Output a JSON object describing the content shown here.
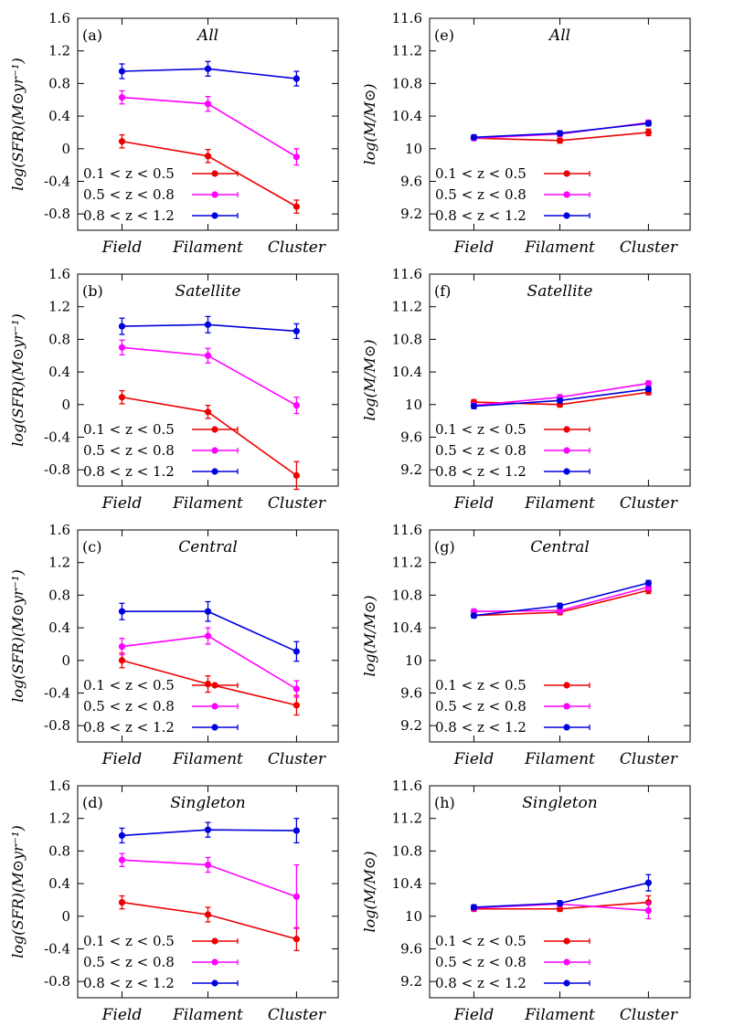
{
  "colors": {
    "z1": "#ee0000",
    "z2": "#ff00ff",
    "z3": "#0000dd",
    "frame": "#000000"
  },
  "legend_position": "bottom-left",
  "chart_data": [
    {
      "type": "line",
      "label": "(a)",
      "title": "All",
      "ylabel": "log(SFR)(M⊙yr⁻¹)",
      "ylim": [
        -1.0,
        1.6
      ],
      "yticks": [
        1.6,
        1.2,
        0.8,
        0.4,
        0,
        -0.4,
        -0.8
      ],
      "categories": [
        "Field",
        "Filament",
        "Cluster"
      ],
      "series": [
        {
          "name": "0.1 < z < 0.5",
          "values": [
            0.09,
            -0.09,
            -0.71
          ],
          "errors": [
            0.08,
            0.08,
            0.08
          ]
        },
        {
          "name": "0.5 < z < 0.8",
          "values": [
            0.63,
            0.55,
            -0.1
          ],
          "errors": [
            0.08,
            0.09,
            0.1
          ]
        },
        {
          "name": "0.8 < z < 1.2",
          "values": [
            0.95,
            0.98,
            0.86
          ],
          "errors": [
            0.09,
            0.09,
            0.09
          ]
        }
      ]
    },
    {
      "type": "line",
      "label": "(e)",
      "title": "All",
      "ylabel": "log(M/M⊙)",
      "ylim": [
        9.0,
        11.6
      ],
      "yticks": [
        11.6,
        11.2,
        10.8,
        10.4,
        10,
        9.6,
        9.2
      ],
      "categories": [
        "Field",
        "Filament",
        "Cluster"
      ],
      "series": [
        {
          "name": "0.1 < z < 0.5",
          "values": [
            10.13,
            10.1,
            10.2
          ],
          "errors": [
            0.03,
            0.03,
            0.04
          ]
        },
        {
          "name": "0.5 < z < 0.8",
          "values": [
            10.13,
            10.18,
            10.32
          ],
          "errors": [
            0.03,
            0.03,
            0.03
          ]
        },
        {
          "name": "0.8 < z < 1.2",
          "values": [
            10.14,
            10.19,
            10.31
          ],
          "errors": [
            0.03,
            0.03,
            0.03
          ]
        }
      ]
    },
    {
      "type": "line",
      "label": "(b)",
      "title": "Satellite",
      "ylabel": "log(SFR)(M⊙yr⁻¹)",
      "ylim": [
        -1.0,
        1.6
      ],
      "yticks": [
        1.6,
        1.2,
        0.8,
        0.4,
        0,
        -0.4,
        -0.8
      ],
      "categories": [
        "Field",
        "Filament",
        "Cluster"
      ],
      "series": [
        {
          "name": "0.1 < z < 0.5",
          "values": [
            0.09,
            -0.09,
            -0.87
          ],
          "errors": [
            0.08,
            0.08,
            0.17
          ]
        },
        {
          "name": "0.5 < z < 0.8",
          "values": [
            0.7,
            0.6,
            -0.01
          ],
          "errors": [
            0.09,
            0.09,
            0.1
          ]
        },
        {
          "name": "0.8 < z < 1.2",
          "values": [
            0.96,
            0.98,
            0.9
          ],
          "errors": [
            0.1,
            0.1,
            0.09
          ]
        }
      ]
    },
    {
      "type": "line",
      "label": "(f)",
      "title": "Satellite",
      "ylabel": "log(M/M⊙)",
      "ylim": [
        9.0,
        11.6
      ],
      "yticks": [
        11.6,
        11.2,
        10.8,
        10.4,
        10,
        9.6,
        9.2
      ],
      "categories": [
        "Field",
        "Filament",
        "Cluster"
      ],
      "series": [
        {
          "name": "0.1 < z < 0.5",
          "values": [
            10.03,
            10.0,
            10.15
          ],
          "errors": [
            0.03,
            0.03,
            0.03
          ]
        },
        {
          "name": "0.5 < z < 0.8",
          "values": [
            9.99,
            10.09,
            10.26
          ],
          "errors": [
            0.03,
            0.03,
            0.03
          ]
        },
        {
          "name": "0.8 < z < 1.2",
          "values": [
            9.98,
            10.05,
            10.19
          ],
          "errors": [
            0.03,
            0.03,
            0.03
          ]
        }
      ]
    },
    {
      "type": "line",
      "label": "(c)",
      "title": "Central",
      "ylabel": "log(SFR)(M⊙yr⁻¹)",
      "ylim": [
        -1.0,
        1.6
      ],
      "yticks": [
        1.6,
        1.2,
        0.8,
        0.4,
        0,
        -0.4,
        -0.8
      ],
      "categories": [
        "Field",
        "Filament",
        "Cluster"
      ],
      "series": [
        {
          "name": "0.1 < z < 0.5",
          "values": [
            0.0,
            -0.29,
            -0.55
          ],
          "errors": [
            0.09,
            0.1,
            0.12
          ]
        },
        {
          "name": "0.5 < z < 0.8",
          "values": [
            0.17,
            0.3,
            -0.35
          ],
          "errors": [
            0.1,
            0.1,
            0.1
          ]
        },
        {
          "name": "0.8 < z < 1.2",
          "values": [
            0.6,
            0.6,
            0.11
          ],
          "errors": [
            0.1,
            0.12,
            0.12
          ]
        }
      ]
    },
    {
      "type": "line",
      "label": "(g)",
      "title": "Central",
      "ylabel": "log(M/M⊙)",
      "ylim": [
        9.0,
        11.6
      ],
      "yticks": [
        11.6,
        11.2,
        10.8,
        10.4,
        10,
        9.6,
        9.2
      ],
      "categories": [
        "Field",
        "Filament",
        "Cluster"
      ],
      "series": [
        {
          "name": "0.1 < z < 0.5",
          "values": [
            10.55,
            10.59,
            10.86
          ],
          "errors": [
            0.03,
            0.03,
            0.04
          ]
        },
        {
          "name": "0.5 < z < 0.8",
          "values": [
            10.6,
            10.61,
            10.9
          ],
          "errors": [
            0.03,
            0.03,
            0.04
          ]
        },
        {
          "name": "0.8 < z < 1.2",
          "values": [
            10.55,
            10.67,
            10.95
          ],
          "errors": [
            0.03,
            0.03,
            0.03
          ]
        }
      ]
    },
    {
      "type": "line",
      "label": "(d)",
      "title": "Singleton",
      "ylabel": "log(SFR)(M⊙yr⁻¹)",
      "ylim": [
        -1.0,
        1.6
      ],
      "yticks": [
        1.6,
        1.2,
        0.8,
        0.4,
        0,
        -0.4,
        -0.8
      ],
      "categories": [
        "Field",
        "Filament",
        "Cluster"
      ],
      "series": [
        {
          "name": "0.1 < z < 0.5",
          "values": [
            0.17,
            0.02,
            -0.28
          ],
          "errors": [
            0.08,
            0.09,
            0.14
          ]
        },
        {
          "name": "0.5 < z < 0.8",
          "values": [
            0.69,
            0.63,
            0.24
          ],
          "errors": [
            0.08,
            0.09,
            0.39
          ]
        },
        {
          "name": "0.8 < z < 1.2",
          "values": [
            0.99,
            1.06,
            1.05
          ],
          "errors": [
            0.09,
            0.09,
            0.15
          ]
        }
      ]
    },
    {
      "type": "line",
      "label": "(h)",
      "title": "Singleton",
      "ylabel": "log(M/M⊙)",
      "ylim": [
        9.0,
        11.6
      ],
      "yticks": [
        11.6,
        11.2,
        10.8,
        10.4,
        10,
        9.6,
        9.2
      ],
      "categories": [
        "Field",
        "Filament",
        "Cluster"
      ],
      "series": [
        {
          "name": "0.1 < z < 0.5",
          "values": [
            10.09,
            10.09,
            10.17
          ],
          "errors": [
            0.03,
            0.03,
            0.08
          ]
        },
        {
          "name": "0.5 < z < 0.8",
          "values": [
            10.1,
            10.15,
            10.07
          ],
          "errors": [
            0.03,
            0.03,
            0.1
          ]
        },
        {
          "name": "0.8 < z < 1.2",
          "values": [
            10.11,
            10.16,
            10.41
          ],
          "errors": [
            0.03,
            0.03,
            0.1
          ]
        }
      ]
    }
  ]
}
